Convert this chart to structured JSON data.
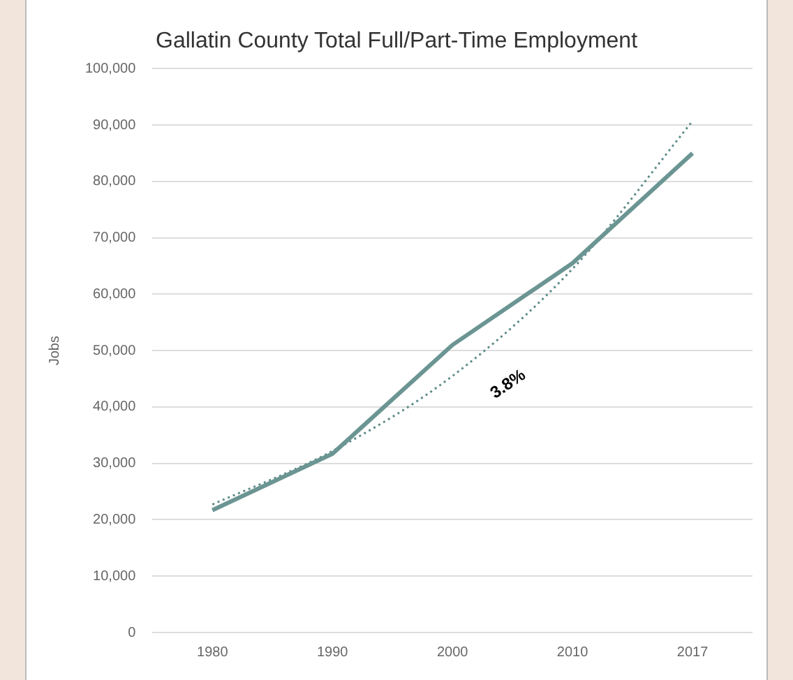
{
  "chart_data": {
    "type": "line",
    "title": "Gallatin County Total Full/Part-Time Employment",
    "ylabel": "Jobs",
    "categories": [
      "1980",
      "1990",
      "2000",
      "2010",
      "2017"
    ],
    "series": [
      {
        "color": "#6b9593",
        "values": [
          21700,
          31700,
          51000,
          65500,
          85000
        ],
        "line_style": "solid"
      },
      {
        "color": "#5e8d8a",
        "values": [
          22700,
          32200,
          45500,
          64500,
          90700
        ],
        "line_style": "dotted"
      }
    ],
    "annotations": [
      {
        "text": "3.8%",
        "x": "2000",
        "y": 44000
      }
    ],
    "ylim": [
      0,
      100000
    ],
    "yticks": [
      0,
      {
        "value": 10000,
        "label": "10,000"
      },
      {
        "value": 20000,
        "label": "20,000"
      },
      {
        "value": 30000,
        "label": "30,000"
      },
      {
        "value": 40000,
        "label": "40,000"
      },
      {
        "value": 50000,
        "label": "50,000"
      },
      {
        "value": 60000,
        "label": "60,000"
      },
      {
        "value": 70000,
        "label": "70,000"
      },
      {
        "value": 80000,
        "label": "80,000"
      },
      {
        "value": 90000,
        "label": "90,000"
      },
      {
        "value": 100000,
        "label": "100,000"
      }
    ],
    "grid": "y",
    "legend": false,
    "marker": "none"
  }
}
